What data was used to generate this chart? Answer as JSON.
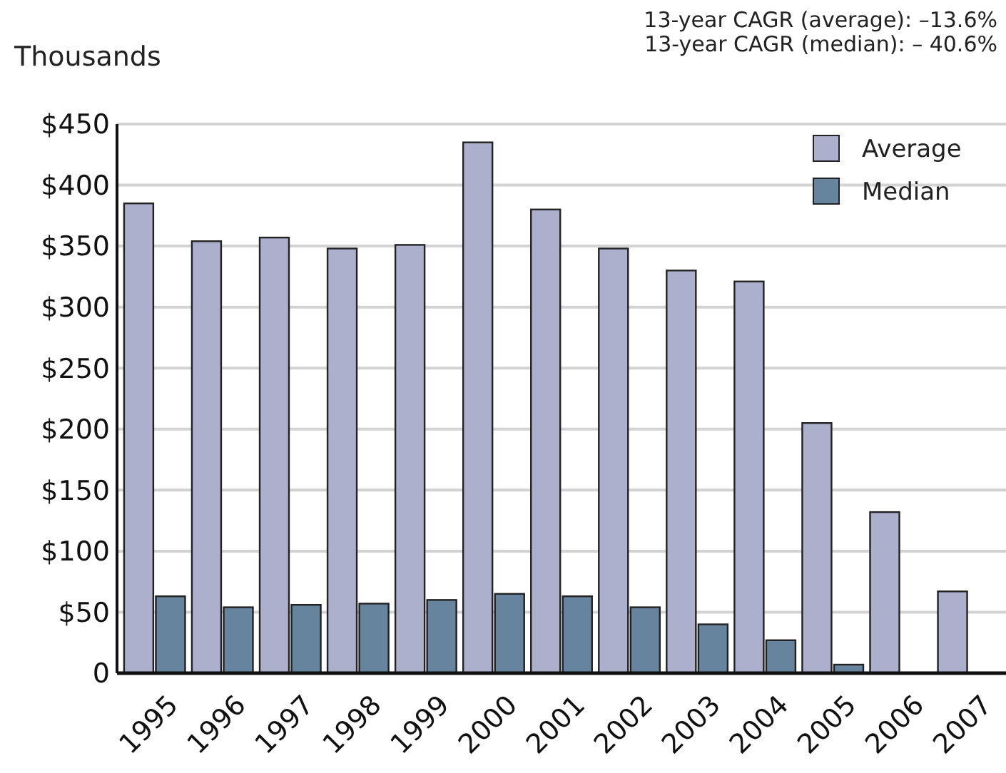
{
  "chart_data": {
    "type": "bar",
    "ylabel": "Thousands",
    "annotations": [
      "13-year CAGR (average): –13.6%",
      "13-year CAGR (median): – 40.6%"
    ],
    "categories": [
      "1995",
      "1996",
      "1997",
      "1998",
      "1999",
      "2000",
      "2001",
      "2002",
      "2003",
      "2004",
      "2005",
      "2006",
      "2007"
    ],
    "series": [
      {
        "name": "Average",
        "color": "#adb0cd",
        "values": [
          385,
          354,
          357,
          348,
          351,
          435,
          380,
          348,
          330,
          321,
          205,
          132,
          67
        ]
      },
      {
        "name": "Median",
        "color": "#66849e",
        "values": [
          63,
          54,
          56,
          57,
          60,
          65,
          63,
          54,
          40,
          27,
          7,
          0,
          0
        ]
      }
    ],
    "ylim": [
      0,
      450
    ],
    "yticks": [
      {
        "value": 0,
        "label": "0"
      },
      {
        "value": 50,
        "label": "$50"
      },
      {
        "value": 100,
        "label": "$100"
      },
      {
        "value": 150,
        "label": "$150"
      },
      {
        "value": 200,
        "label": "$200"
      },
      {
        "value": 250,
        "label": "$250"
      },
      {
        "value": 300,
        "label": "$300"
      },
      {
        "value": 350,
        "label": "$350"
      },
      {
        "value": 400,
        "label": "$400"
      },
      {
        "value": 450,
        "label": "$450"
      }
    ],
    "grid": "y",
    "legend": "top right"
  }
}
